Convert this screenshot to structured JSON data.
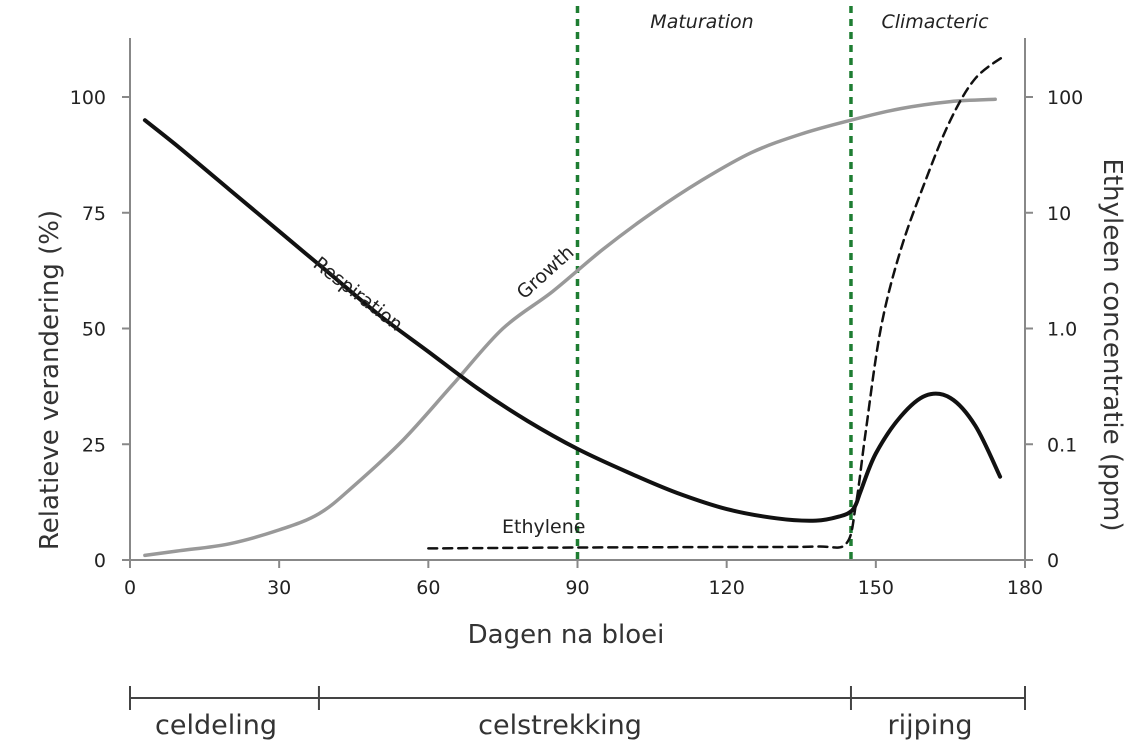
{
  "chart_data": {
    "type": "line",
    "xlabel": "Dagen na bloei",
    "ylabel": "Relatieve verandering (%)",
    "y2label": "Ethyleen concentratie (ppm)",
    "xlim": [
      0,
      180
    ],
    "ylim": [
      0,
      100
    ],
    "y2_scale": "log",
    "x_ticks": [
      "0",
      "30",
      "60",
      "90",
      "120",
      "150",
      "180"
    ],
    "y_ticks": [
      "0",
      "25",
      "50",
      "75",
      "100"
    ],
    "y2_ticks": [
      "0",
      "0.1",
      "1.0",
      "10",
      "100"
    ],
    "grid": false,
    "series": [
      {
        "name": "Respiration",
        "color": "#111111",
        "style": "solid",
        "axis": "left",
        "points": [
          [
            3,
            95
          ],
          [
            10,
            89
          ],
          [
            20,
            80
          ],
          [
            30,
            71
          ],
          [
            40,
            62
          ],
          [
            50,
            53
          ],
          [
            60,
            45
          ],
          [
            70,
            37
          ],
          [
            80,
            30
          ],
          [
            90,
            24
          ],
          [
            100,
            19
          ],
          [
            110,
            14.5
          ],
          [
            120,
            11
          ],
          [
            130,
            9
          ],
          [
            138,
            8.5
          ],
          [
            143,
            9.5
          ],
          [
            145,
            10.5
          ],
          [
            146,
            12
          ],
          [
            147,
            15
          ],
          [
            150,
            23
          ],
          [
            155,
            31
          ],
          [
            160,
            35.5
          ],
          [
            165,
            35
          ],
          [
            170,
            29
          ],
          [
            175,
            18
          ]
        ]
      },
      {
        "name": "Growth",
        "color": "#999999",
        "style": "solid",
        "axis": "left",
        "points": [
          [
            3,
            1
          ],
          [
            10,
            2
          ],
          [
            20,
            3.5
          ],
          [
            30,
            6.5
          ],
          [
            38,
            10
          ],
          [
            45,
            16
          ],
          [
            55,
            26
          ],
          [
            65,
            38
          ],
          [
            75,
            50
          ],
          [
            85,
            58
          ],
          [
            95,
            67
          ],
          [
            105,
            75
          ],
          [
            115,
            82
          ],
          [
            125,
            88
          ],
          [
            135,
            92
          ],
          [
            145,
            95
          ],
          [
            155,
            97.5
          ],
          [
            165,
            99
          ],
          [
            174,
            99.5
          ]
        ]
      },
      {
        "name": "Ethylene",
        "color": "#111111",
        "style": "dashed",
        "axis": "right",
        "points": [
          [
            60,
            2.5
          ],
          [
            90,
            2.7
          ],
          [
            120,
            2.8
          ],
          [
            138,
            2.9
          ],
          [
            144,
            3.5
          ],
          [
            146,
            12
          ],
          [
            148,
            28
          ],
          [
            151,
            50
          ],
          [
            155,
            67
          ],
          [
            160,
            82
          ],
          [
            165,
            95
          ],
          [
            170,
            104
          ],
          [
            176,
            109
          ]
        ]
      }
    ],
    "vlines": [
      {
        "x": 90,
        "color": "#1e7d32"
      },
      {
        "x": 145,
        "color": "#1e7d32"
      }
    ],
    "region_labels": [
      "Maturation",
      "Climacteric"
    ],
    "phases": {
      "ticks": [
        0,
        38,
        145,
        180
      ],
      "labels": [
        "celdeling",
        "celstrekking",
        "rijping"
      ]
    }
  }
}
